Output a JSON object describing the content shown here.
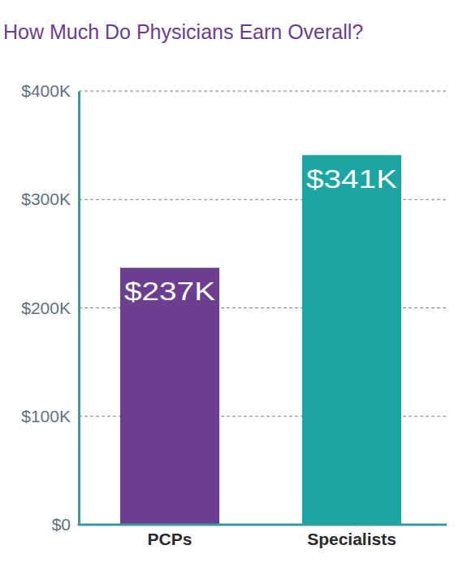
{
  "chart_data": {
    "type": "bar",
    "title": "How Much Do Physicians Earn Overall?",
    "categories": [
      "PCPs",
      "Specialists"
    ],
    "values": [
      237000,
      341000
    ],
    "value_labels": [
      "$237K",
      "$341K"
    ],
    "colors": [
      "#6b3e8f",
      "#1ba5a3"
    ],
    "ylim": [
      0,
      400000
    ],
    "yticks": [
      {
        "value": 0,
        "label": "$0"
      },
      {
        "value": 100000,
        "label": "$100K"
      },
      {
        "value": 200000,
        "label": "$200K"
      },
      {
        "value": 300000,
        "label": "$300K"
      },
      {
        "value": 400000,
        "label": "$400K"
      }
    ],
    "grid": true,
    "data_labels": true
  }
}
